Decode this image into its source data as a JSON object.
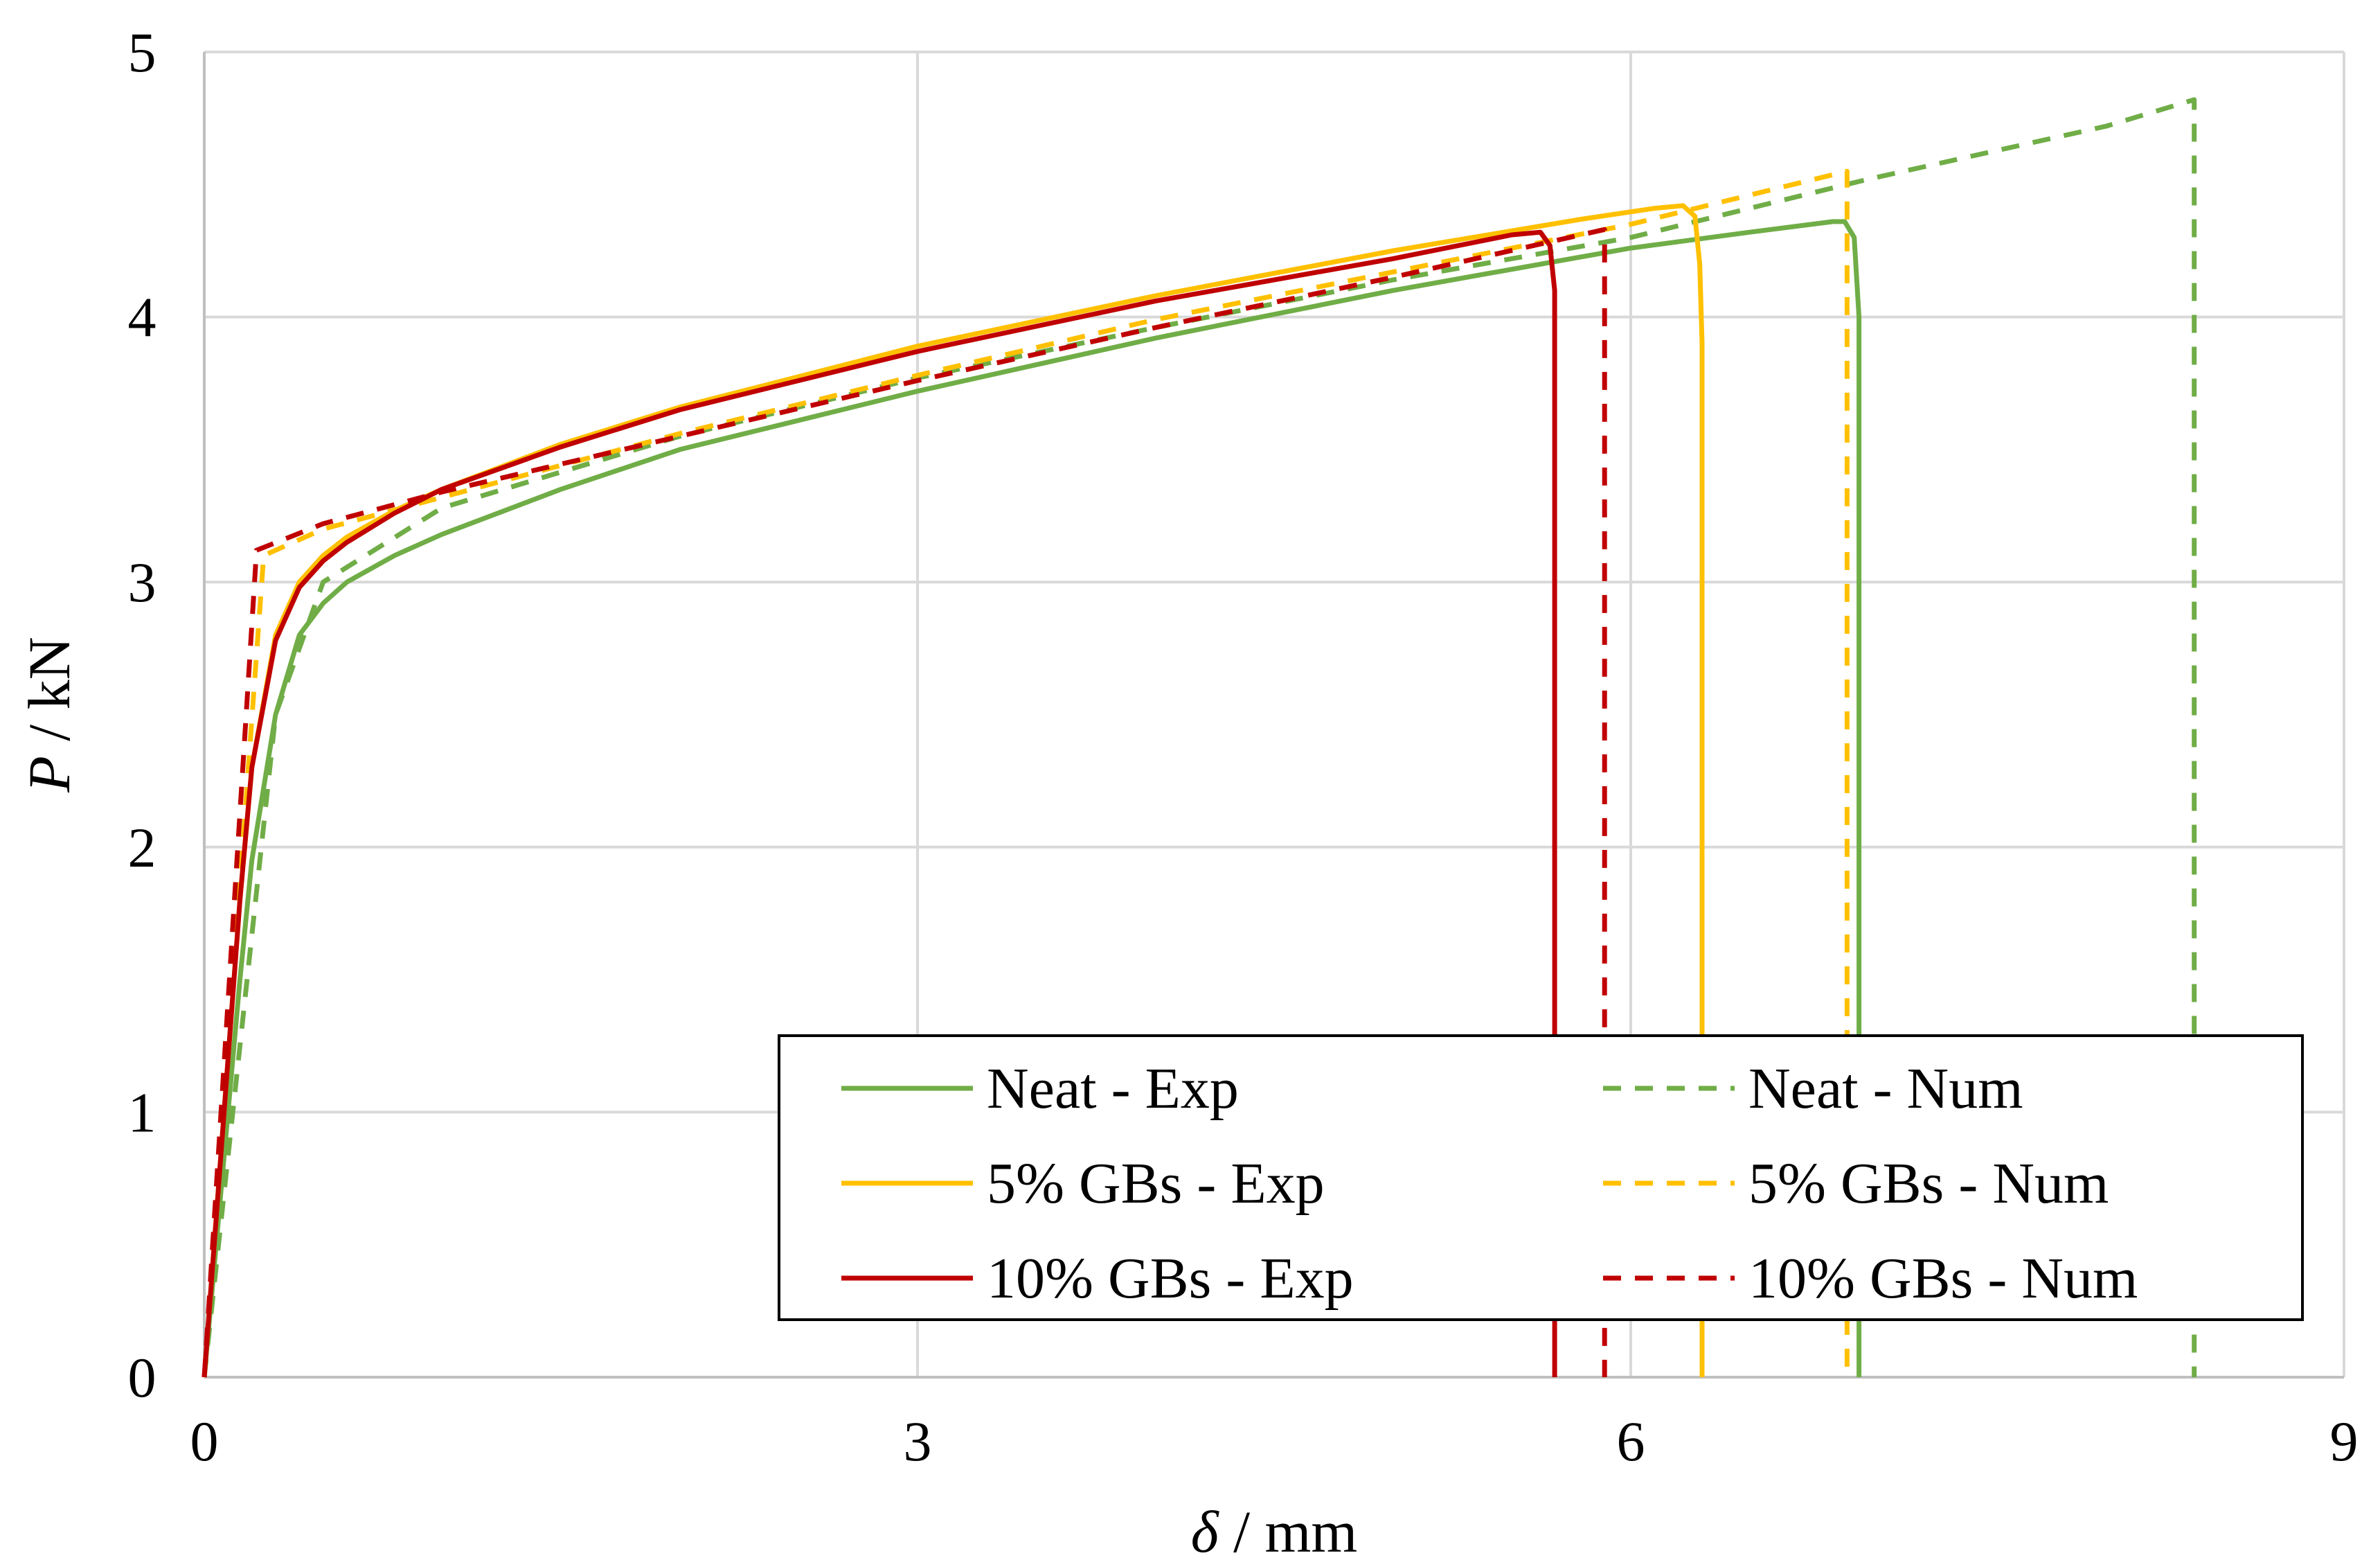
{
  "chart_data": {
    "type": "line",
    "title": "",
    "xlabel": {
      "symbol": "δ",
      "unit": " / mm"
    },
    "ylabel": {
      "symbol": "P",
      "unit": " / kN"
    },
    "xlim": [
      0,
      9
    ],
    "ylim": [
      0,
      5
    ],
    "xticks": [
      0,
      3,
      6,
      9
    ],
    "yticks": [
      0,
      1,
      2,
      3,
      4,
      5
    ],
    "xtick_labels": [
      "0",
      "3",
      "6",
      "9"
    ],
    "ytick_labels": [
      "0",
      "1",
      "2",
      "3",
      "4",
      "5"
    ],
    "grid": true,
    "legend": {
      "placement": "bottom-right",
      "columns": 2,
      "boxed": true
    },
    "series": [
      {
        "name": "Neat - Exp",
        "color": "#70ad47",
        "dash": "solid",
        "x": [
          0,
          0.05,
          0.1,
          0.15,
          0.2,
          0.3,
          0.4,
          0.5,
          0.6,
          0.8,
          1.0,
          1.5,
          2.0,
          3.0,
          4.0,
          5.0,
          6.0,
          6.5,
          6.85,
          6.9,
          6.94,
          6.96,
          6.96
        ],
        "y": [
          0,
          0.5,
          1.0,
          1.5,
          1.95,
          2.5,
          2.8,
          2.92,
          3.0,
          3.1,
          3.18,
          3.35,
          3.5,
          3.72,
          3.92,
          4.1,
          4.26,
          4.32,
          4.36,
          4.36,
          4.3,
          4.0,
          0
        ]
      },
      {
        "name": "Neat - Num",
        "color": "#70ad47",
        "dash": "dashed",
        "x": [
          0,
          0.3,
          0.5,
          1.0,
          2.0,
          3.0,
          4.0,
          5.0,
          6.0,
          7.0,
          8.0,
          8.37,
          8.37
        ],
        "y": [
          0,
          2.5,
          3.0,
          3.28,
          3.55,
          3.77,
          3.96,
          4.14,
          4.3,
          4.52,
          4.72,
          4.82,
          0
        ]
      },
      {
        "name": "5% GBs - Exp",
        "color": "#ffc000",
        "dash": "solid",
        "x": [
          0,
          0.05,
          0.1,
          0.15,
          0.2,
          0.3,
          0.4,
          0.5,
          0.6,
          0.8,
          1.0,
          1.5,
          2.0,
          3.0,
          4.0,
          5.0,
          5.8,
          6.1,
          6.22,
          6.27,
          6.29,
          6.3,
          6.3
        ],
        "y": [
          0,
          0.6,
          1.2,
          1.8,
          2.3,
          2.8,
          3.0,
          3.1,
          3.17,
          3.27,
          3.35,
          3.52,
          3.66,
          3.89,
          4.08,
          4.25,
          4.37,
          4.41,
          4.42,
          4.38,
          4.2,
          3.9,
          0
        ]
      },
      {
        "name": "5% GBs - Num",
        "color": "#ffc000",
        "dash": "dashed",
        "x": [
          0,
          0.25,
          0.5,
          1.0,
          2.0,
          3.0,
          4.0,
          5.0,
          6.0,
          6.91,
          6.91
        ],
        "y": [
          0,
          3.1,
          3.2,
          3.32,
          3.56,
          3.78,
          3.99,
          4.17,
          4.35,
          4.55,
          0
        ]
      },
      {
        "name": "10% GBs - Exp",
        "color": "#c00000",
        "dash": "solid",
        "x": [
          0,
          0.05,
          0.1,
          0.15,
          0.2,
          0.3,
          0.4,
          0.5,
          0.6,
          0.8,
          1.0,
          1.5,
          2.0,
          3.0,
          4.0,
          5.0,
          5.5,
          5.62,
          5.66,
          5.68,
          5.68
        ],
        "y": [
          0,
          0.6,
          1.2,
          1.8,
          2.3,
          2.78,
          2.98,
          3.08,
          3.15,
          3.26,
          3.35,
          3.51,
          3.65,
          3.87,
          4.06,
          4.22,
          4.31,
          4.32,
          4.27,
          4.1,
          0
        ]
      },
      {
        "name": "10% GBs - Num",
        "color": "#c00000",
        "dash": "dashed",
        "x": [
          0,
          0.22,
          0.5,
          1.0,
          2.0,
          3.0,
          4.0,
          5.0,
          5.89,
          5.89
        ],
        "y": [
          0,
          3.12,
          3.22,
          3.34,
          3.55,
          3.76,
          3.96,
          4.15,
          4.33,
          0
        ]
      }
    ]
  }
}
